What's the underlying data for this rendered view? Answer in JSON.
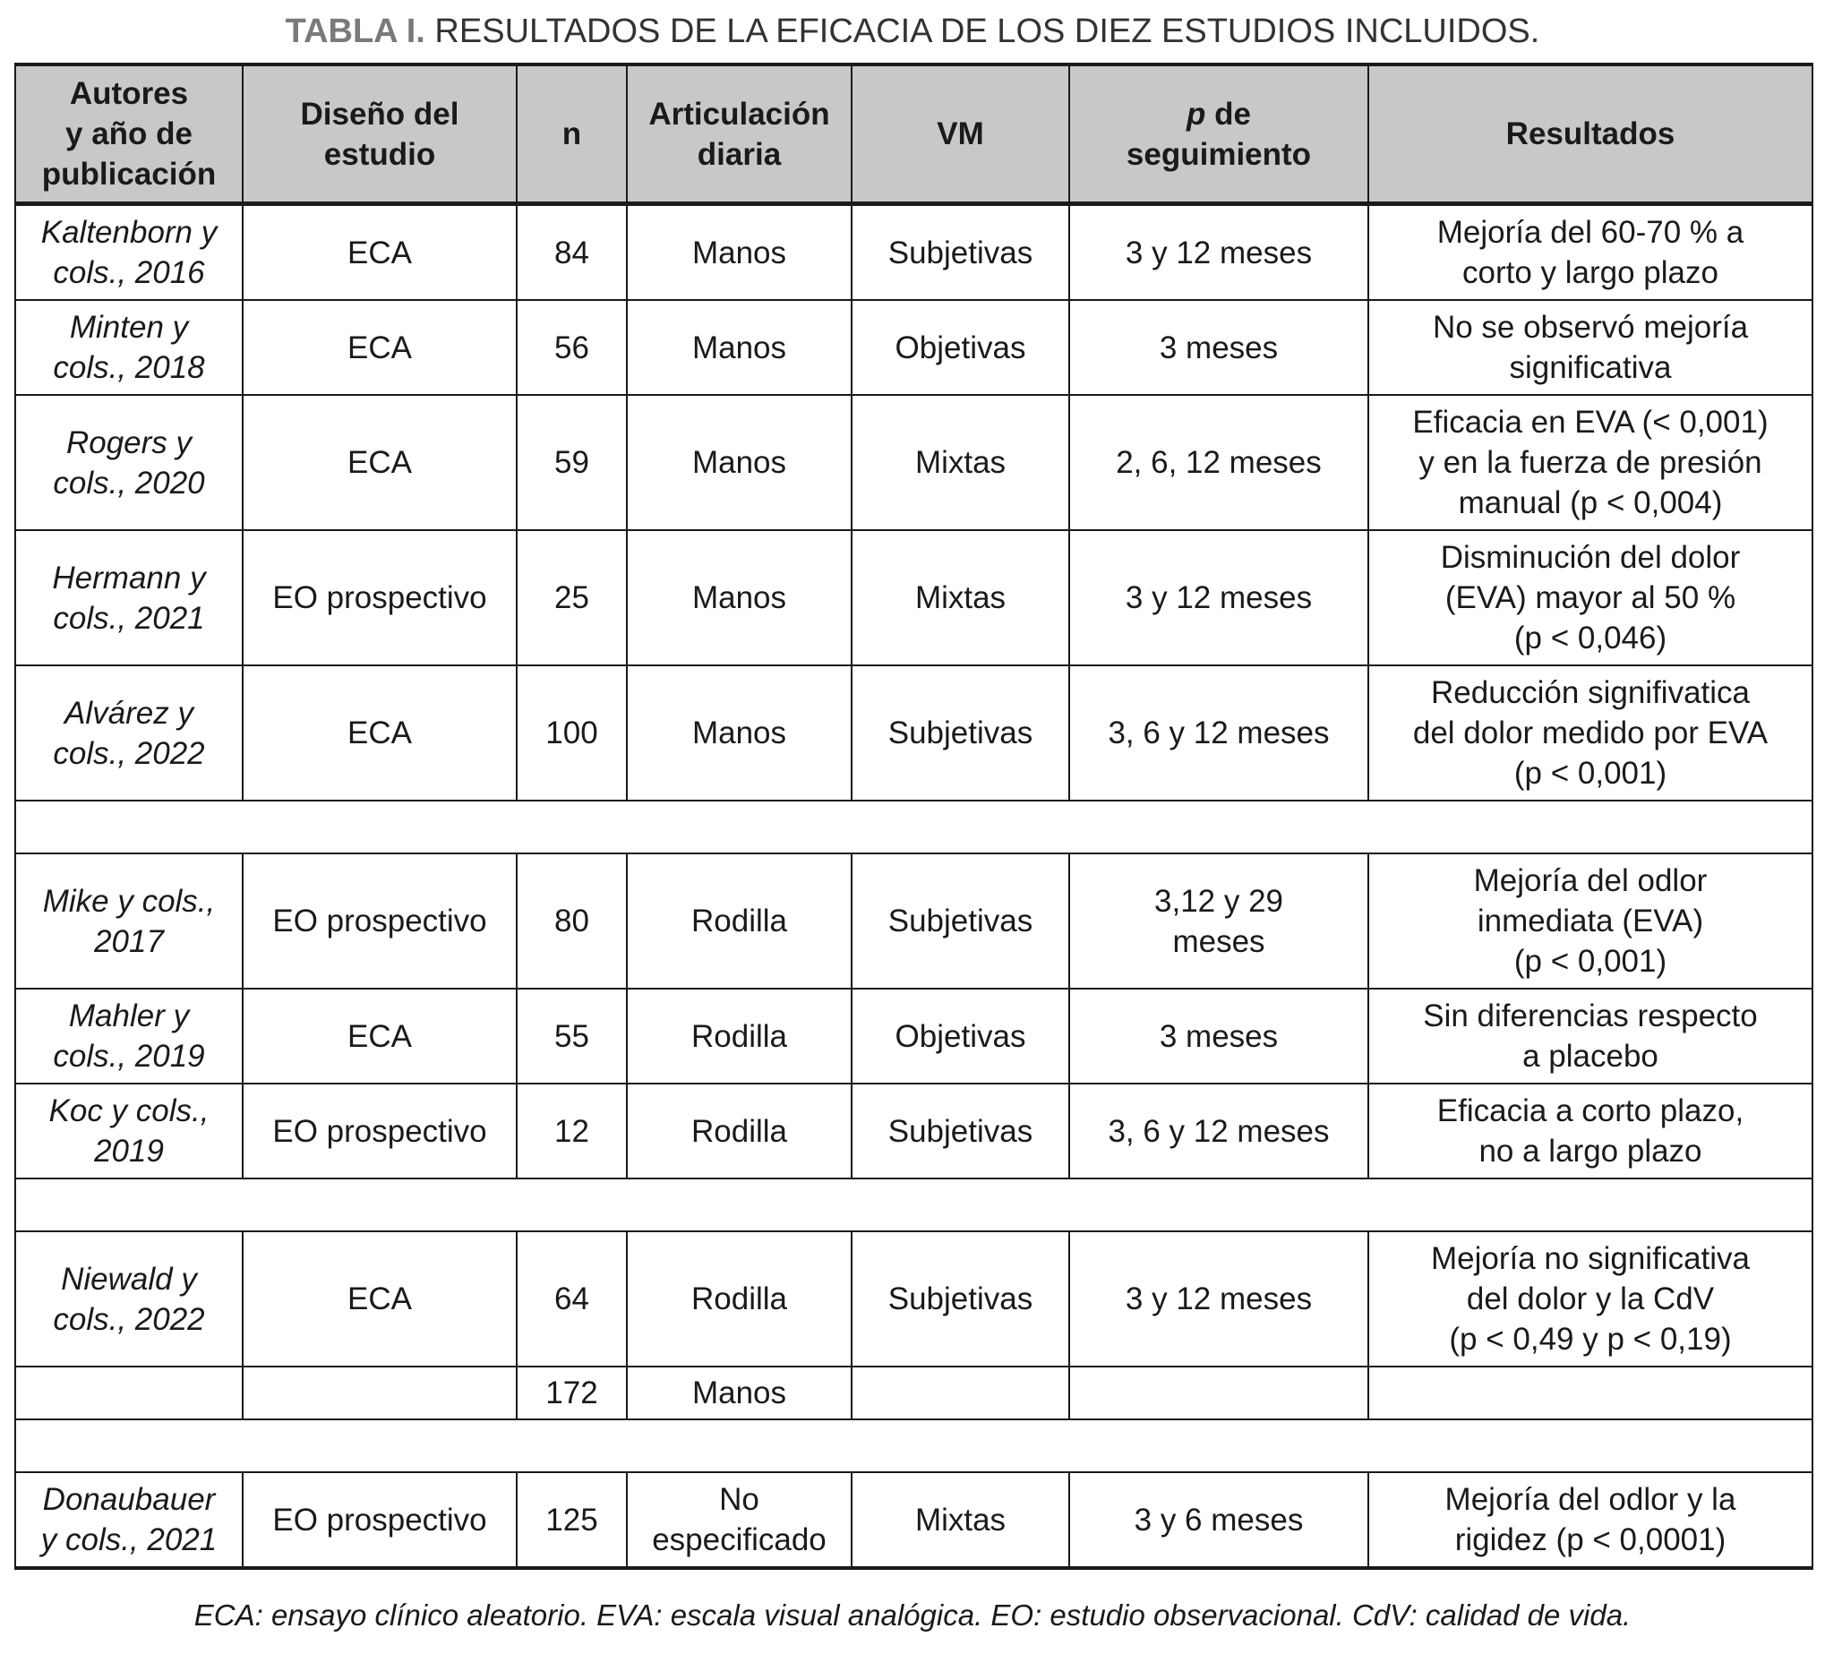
{
  "title": {
    "lead": "TABLA I.",
    "text": " RESULTADOS DE LA EFICACIA DE LOS DIEZ ESTUDIOS INCLUIDOS."
  },
  "headers": [
    {
      "lines": [
        "Autores",
        "y año de",
        "publicación"
      ]
    },
    {
      "lines": [
        "Diseño del",
        "estudio"
      ]
    },
    {
      "lines": [
        "n"
      ]
    },
    {
      "lines": [
        "Articulación",
        "diaria"
      ]
    },
    {
      "lines": [
        "VM"
      ]
    },
    {
      "italic": "p",
      "lines": [
        " de",
        "seguimiento"
      ]
    },
    {
      "lines": [
        "Resultados"
      ]
    }
  ],
  "rows": [
    {
      "h": "mid",
      "cells": [
        [
          "Kaltenborn y",
          "cols., 2016"
        ],
        [
          "ECA"
        ],
        [
          "84"
        ],
        [
          "Manos"
        ],
        [
          "Subjetivas"
        ],
        [
          "3 y 12 meses"
        ],
        [
          "Mejoría del 60-70 % a",
          "corto y largo plazo"
        ]
      ]
    },
    {
      "h": "mid",
      "cells": [
        [
          "Minten y",
          "cols., 2018"
        ],
        [
          "ECA"
        ],
        [
          "56"
        ],
        [
          "Manos"
        ],
        [
          "Objetivas"
        ],
        [
          "3 meses"
        ],
        [
          "No se observó mejoría",
          "significativa"
        ]
      ]
    },
    {
      "h": "tall",
      "cells": [
        [
          "Rogers y",
          "cols., 2020"
        ],
        [
          "ECA"
        ],
        [
          "59"
        ],
        [
          "Manos"
        ],
        [
          "Mixtas"
        ],
        [
          "2, 6, 12 meses"
        ],
        [
          "Eficacia en EVA (< 0,001)",
          "y en la fuerza de presión",
          "manual (p < 0,004)"
        ]
      ]
    },
    {
      "h": "tall",
      "cells": [
        [
          "Hermann y",
          "cols., 2021"
        ],
        [
          "EO prospectivo"
        ],
        [
          "25"
        ],
        [
          "Manos"
        ],
        [
          "Mixtas"
        ],
        [
          "3 y 12 meses"
        ],
        [
          "Disminución del dolor",
          "(EVA) mayor al 50 %",
          "(p < 0,046)"
        ]
      ]
    },
    {
      "h": "tall",
      "cells": [
        [
          "Alvárez y",
          "cols., 2022"
        ],
        [
          "ECA"
        ],
        [
          "100"
        ],
        [
          "Manos"
        ],
        [
          "Subjetivas"
        ],
        [
          "3, 6 y 12 meses"
        ],
        [
          "Reducción signifivatica",
          "del dolor medido por EVA",
          "(p < 0,001)"
        ]
      ]
    },
    {
      "sep": true
    },
    {
      "h": "tall",
      "cells": [
        [
          "Mike y cols.,",
          "2017"
        ],
        [
          "EO prospectivo"
        ],
        [
          "80"
        ],
        [
          "Rodilla"
        ],
        [
          "Subjetivas"
        ],
        [
          "3,12 y 29",
          "meses"
        ],
        [
          "Mejoría del odlor",
          "inmediata (EVA)",
          "(p < 0,001)"
        ]
      ]
    },
    {
      "h": "mid",
      "cells": [
        [
          "Mahler y",
          "cols., 2019"
        ],
        [
          "ECA"
        ],
        [
          "55"
        ],
        [
          "Rodilla"
        ],
        [
          "Objetivas"
        ],
        [
          "3 meses"
        ],
        [
          "Sin diferencias respecto",
          "a placebo"
        ]
      ]
    },
    {
      "h": "mid",
      "cells": [
        [
          "Koc y cols.,",
          "2019"
        ],
        [
          "EO prospectivo"
        ],
        [
          "12"
        ],
        [
          "Rodilla"
        ],
        [
          "Subjetivas"
        ],
        [
          "3, 6 y 12 meses"
        ],
        [
          "Eficacia a corto plazo,",
          "no a largo plazo"
        ]
      ]
    },
    {
      "sep": true
    },
    {
      "h": "tall",
      "cells": [
        [
          "Niewald y",
          "cols., 2022"
        ],
        [
          "ECA"
        ],
        [
          "64"
        ],
        [
          "Rodilla"
        ],
        [
          "Subjetivas"
        ],
        [
          "3 y 12 meses"
        ],
        [
          "Mejoría no significativa",
          "del dolor y la CdV",
          "(p < 0,49 y p < 0,19)"
        ]
      ]
    },
    {
      "h": "short",
      "cells": [
        [],
        [],
        [
          "172"
        ],
        [
          "Manos"
        ],
        [],
        [],
        []
      ]
    },
    {
      "sep": true
    },
    {
      "h": "mid",
      "cells": [
        [
          "Donaubauer",
          "y cols., 2021"
        ],
        [
          "EO prospectivo"
        ],
        [
          "125"
        ],
        [
          "No",
          "especificado"
        ],
        [
          "Mixtas"
        ],
        [
          "3 y 6 meses"
        ],
        [
          "Mejoría del odlor y la",
          "rigidez (p < 0,0001)"
        ]
      ]
    }
  ],
  "footnote": "ECA: ensayo clínico aleatorio. EVA: escala visual analógica. EO: estudio observacional. CdV: calidad de vida."
}
